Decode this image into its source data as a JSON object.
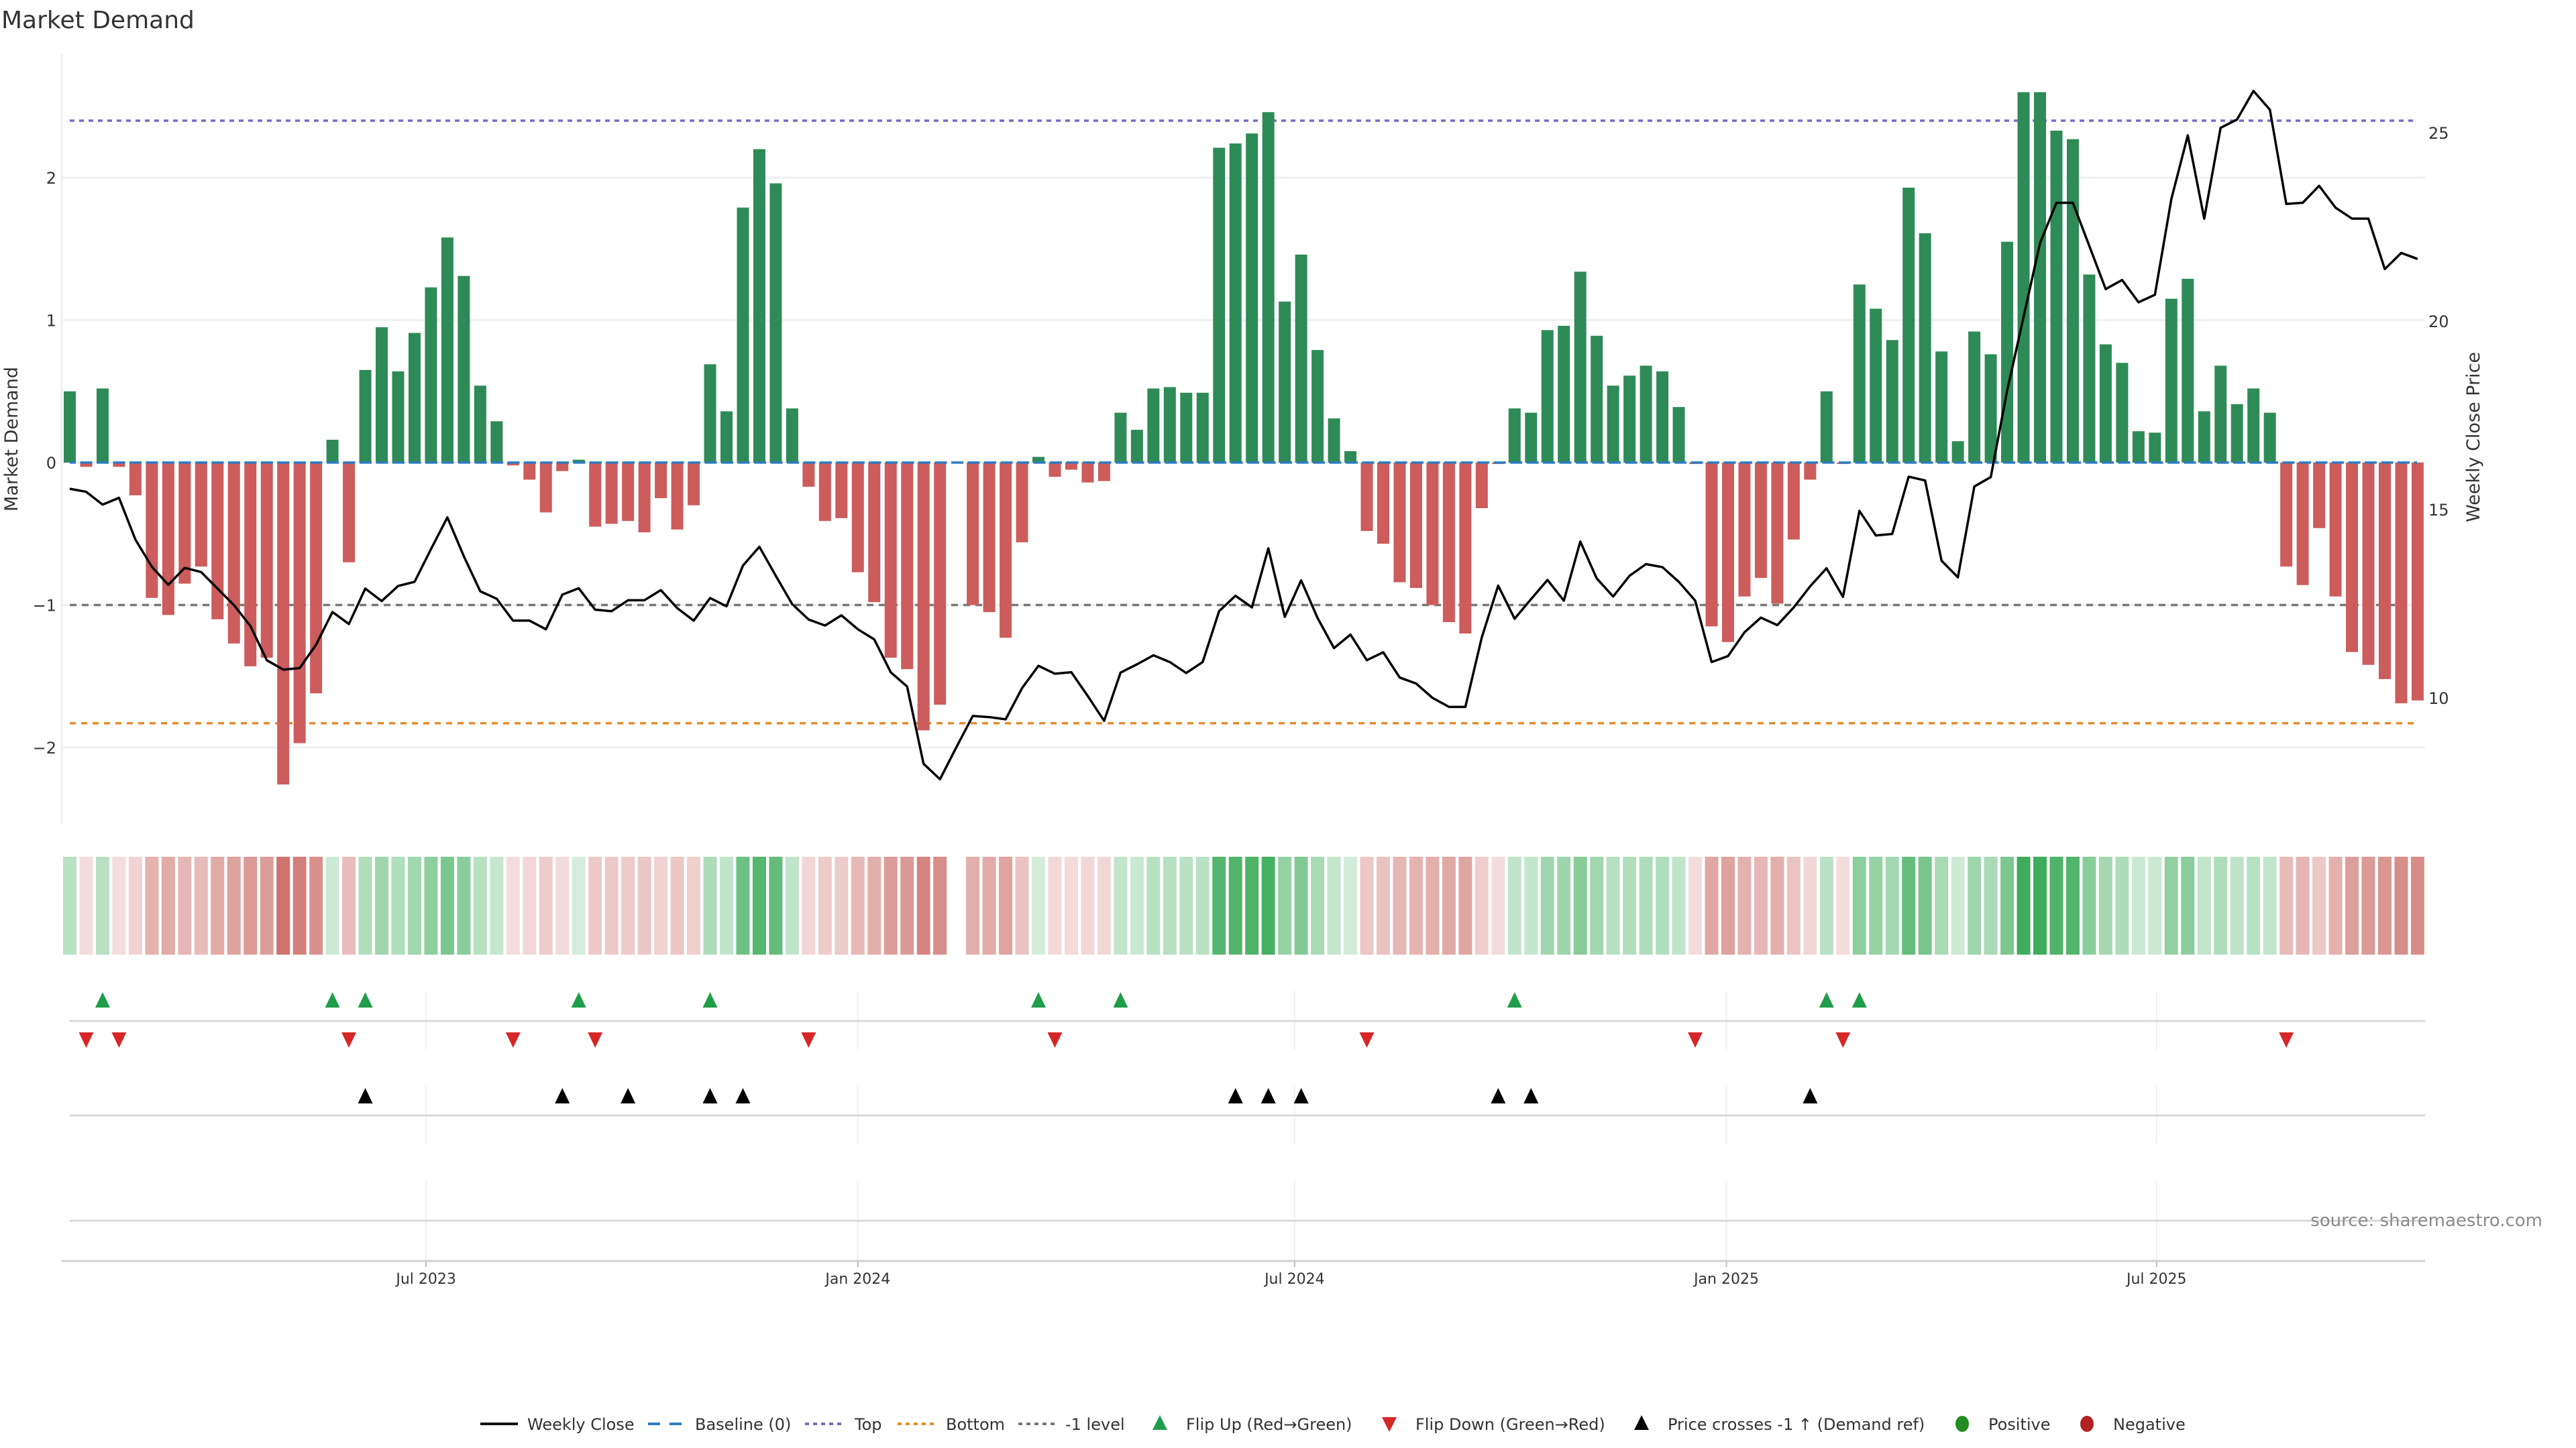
{
  "title": "Market Demand",
  "source_label": "source: sharemaestro.com",
  "colors": {
    "positive_bar": "#2e8b57",
    "negative_bar": "#cd5c5c",
    "price_line": "#000000",
    "baseline": "#2f7bbf",
    "top_level": "#7b68c8",
    "bottom_level": "#e8892b",
    "minus_one_level": "#777777",
    "flip_up": "#1f9e4a",
    "flip_down": "#d62728",
    "price_cross": "#000000",
    "heat_positive": "#34a853",
    "heat_negative": "#c55a55",
    "legend_positive": "#228b22",
    "legend_negative": "#b22222"
  },
  "legend": {
    "weekly_close": "Weekly Close",
    "baseline": "Baseline (0)",
    "top": "Top",
    "bottom": "Bottom",
    "minus_one": "-1 level",
    "flip_up": "Flip Up (Red→Green)",
    "flip_down": "Flip Down (Green→Red)",
    "price_cross": "Price crosses -1 ↑ (Demand ref)",
    "positive": "Positive",
    "negative": "Negative"
  },
  "chart_data": {
    "type": "bar",
    "title": "Market Demand",
    "ylabel": "Market Demand",
    "ylabel_right": "Weekly Close Price",
    "ylim": [
      -2.55,
      2.85
    ],
    "ylim_right": [
      6.65,
      27.1
    ],
    "yticks": [
      "2",
      "1",
      "0",
      "−1",
      "−2"
    ],
    "yticks_values": [
      2,
      1,
      0,
      -1,
      -2
    ],
    "yticks_right": [
      "25",
      "20",
      "15",
      "10"
    ],
    "yticks_right_values": [
      25,
      20,
      15,
      10
    ],
    "xticks": [
      {
        "label": "Jul 2023",
        "week": 21.7
      },
      {
        "label": "Jan 2024",
        "week": 48.0
      },
      {
        "label": "Jul 2024",
        "week": 74.6
      },
      {
        "label": "Jan 2025",
        "week": 100.9
      },
      {
        "label": "Jul 2025",
        "week": 127.1
      }
    ],
    "reference_levels": {
      "top": 2.4,
      "bottom": -1.83,
      "minus_one": -1,
      "baseline": 0
    },
    "demand": [
      0.5,
      -0.03,
      0.52,
      -0.03,
      -0.23,
      -0.95,
      -1.07,
      -0.85,
      -0.73,
      -1.1,
      -1.27,
      -1.43,
      -1.37,
      -2.26,
      -1.97,
      -1.62,
      0.16,
      -0.7,
      0.65,
      0.95,
      0.64,
      0.91,
      1.23,
      1.58,
      1.31,
      0.54,
      0.29,
      -0.02,
      -0.12,
      -0.35,
      -0.06,
      0.02,
      -0.45,
      -0.43,
      -0.41,
      -0.49,
      -0.25,
      -0.47,
      -0.3,
      0.69,
      0.36,
      1.79,
      2.2,
      1.96,
      0.38,
      -0.17,
      -0.41,
      -0.39,
      -0.77,
      -0.98,
      -1.37,
      -1.45,
      -1.88,
      -1.7,
      null,
      -1.0,
      -1.05,
      -1.23,
      -0.56,
      0.04,
      -0.1,
      -0.05,
      -0.14,
      -0.13,
      0.35,
      0.23,
      0.52,
      0.53,
      0.49,
      0.49,
      2.21,
      2.24,
      2.31,
      2.46,
      1.13,
      1.46,
      0.79,
      0.31,
      0.08,
      -0.48,
      -0.57,
      -0.84,
      -0.88,
      -1.0,
      -1.12,
      -1.2,
      -0.32,
      -0.01,
      0.38,
      0.35,
      0.93,
      0.96,
      1.34,
      0.89,
      0.54,
      0.61,
      0.68,
      0.64,
      0.39,
      -0.01,
      -1.15,
      -1.26,
      -0.94,
      -0.81,
      -0.99,
      -0.54,
      -0.12,
      0.5,
      -0.01,
      1.25,
      1.08,
      0.86,
      1.93,
      1.61,
      0.78,
      0.15,
      0.92,
      0.76,
      1.55,
      2.6,
      2.6,
      2.33,
      2.27,
      1.32,
      0.83,
      0.7,
      0.22,
      0.21,
      1.15,
      1.29,
      0.36,
      0.68,
      0.41,
      0.52,
      0.35,
      -0.73,
      -0.86,
      -0.46,
      -0.94,
      -1.33,
      -1.42,
      -1.52,
      -1.69,
      -1.67
    ],
    "weekly_close": [
      15.55,
      15.47,
      15.13,
      15.31,
      14.2,
      13.48,
      13.0,
      13.45,
      13.34,
      12.9,
      12.46,
      11.91,
      11.0,
      10.75,
      10.79,
      11.41,
      12.28,
      11.96,
      12.9,
      12.57,
      12.97,
      13.08,
      13.95,
      14.79,
      13.76,
      12.83,
      12.63,
      12.05,
      12.05,
      11.82,
      12.74,
      12.91,
      12.34,
      12.3,
      12.59,
      12.59,
      12.86,
      12.38,
      12.05,
      12.65,
      12.43,
      13.51,
      14.01,
      13.24,
      12.49,
      12.08,
      11.92,
      12.19,
      11.82,
      11.55,
      10.68,
      10.3,
      8.25,
      7.84,
      8.69,
      9.52,
      9.49,
      9.43,
      10.26,
      10.85,
      10.64,
      10.68,
      10.05,
      9.39,
      10.67,
      10.89,
      11.13,
      10.95,
      10.66,
      10.95,
      12.3,
      12.71,
      12.4,
      13.97,
      12.15,
      13.12,
      12.12,
      11.32,
      11.68,
      11.0,
      11.21,
      10.54,
      10.38,
      10.0,
      9.76,
      9.76,
      11.6,
      12.98,
      12.1,
      12.62,
      13.13,
      12.58,
      14.15,
      13.17,
      12.69,
      13.24,
      13.55,
      13.47,
      13.08,
      12.58,
      10.95,
      11.11,
      11.74,
      12.13,
      11.93,
      12.4,
      12.96,
      13.44,
      12.68,
      14.96,
      14.31,
      14.35,
      15.87,
      15.77,
      13.64,
      13.2,
      15.61,
      15.86,
      18.16,
      20.11,
      22.07,
      23.14,
      23.14,
      22.0,
      20.85,
      21.09,
      20.5,
      20.7,
      23.24,
      24.93,
      22.72,
      25.13,
      25.35,
      26.11,
      25.61,
      23.11,
      23.14,
      23.59,
      23.01,
      22.72,
      22.72,
      21.38,
      21.81,
      21.65
    ],
    "flip_up_weeks": [
      3,
      17,
      19,
      32,
      40,
      60,
      65,
      89,
      108,
      110
    ],
    "flip_down_weeks": [
      2,
      4,
      18,
      28,
      33,
      46,
      61,
      80,
      100,
      109,
      136
    ],
    "price_cross_weeks": [
      19,
      31,
      35,
      40,
      42,
      72,
      74,
      76,
      88,
      90,
      107
    ]
  }
}
